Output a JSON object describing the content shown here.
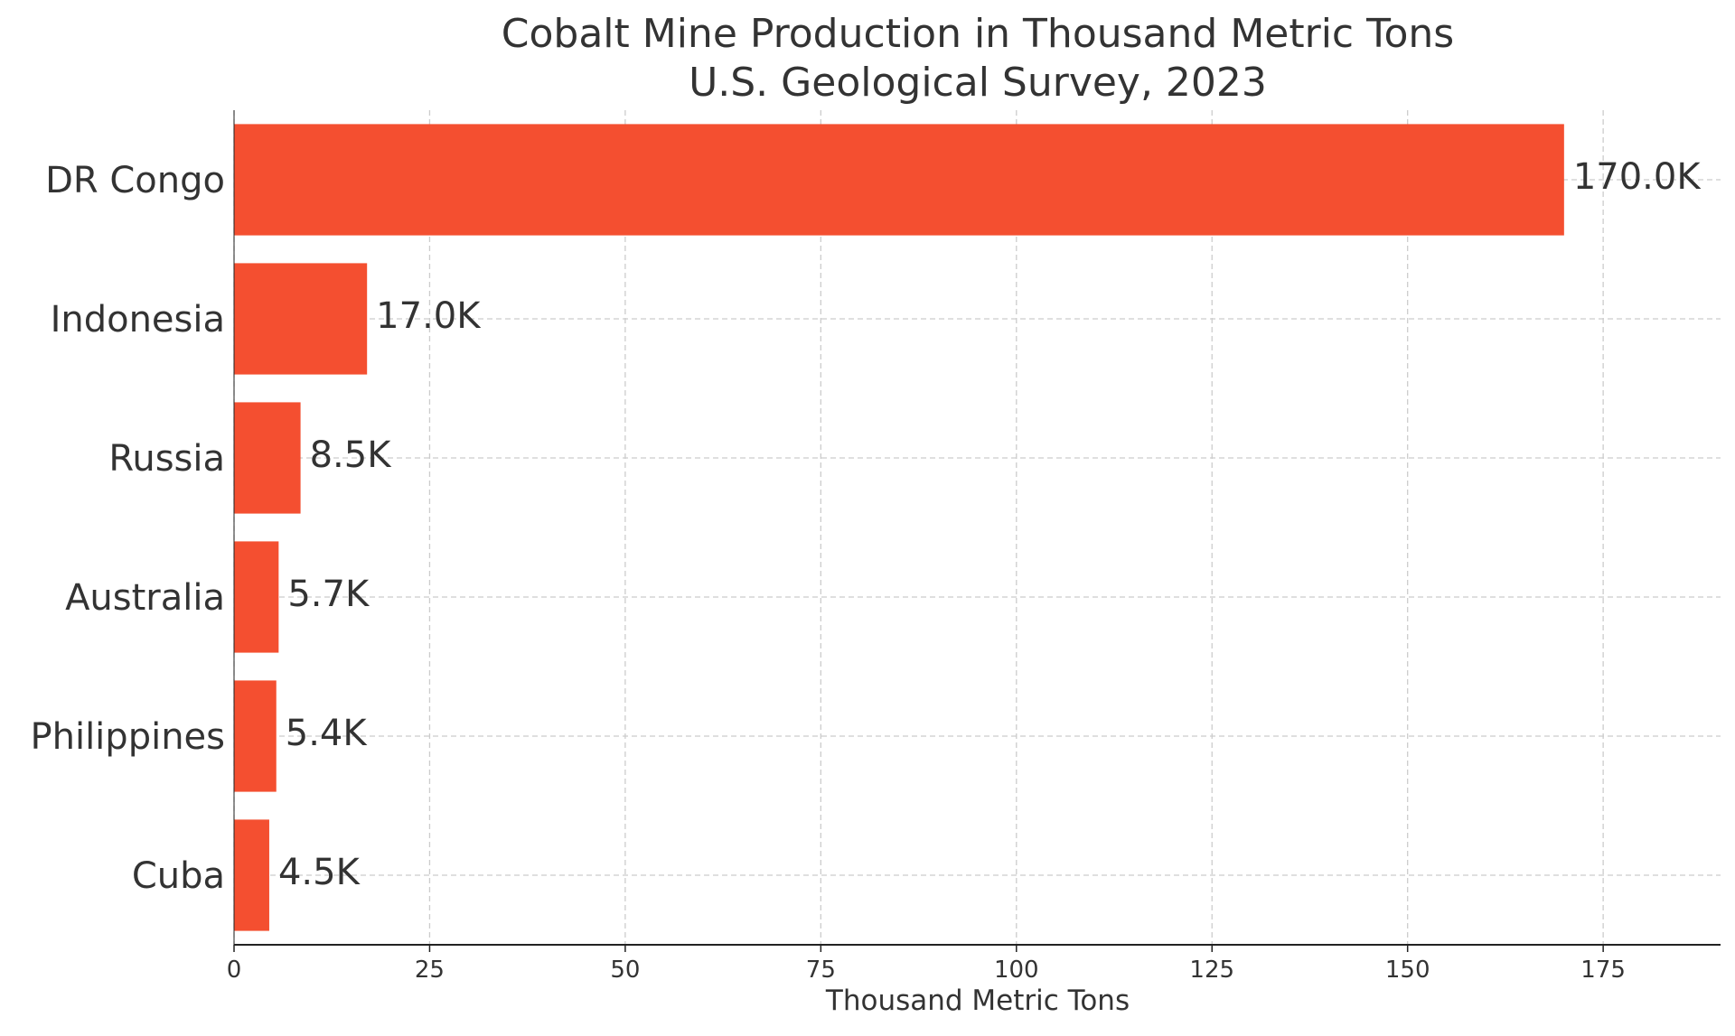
{
  "chart_data": {
    "type": "bar",
    "orientation": "horizontal",
    "title": "Cobalt Mine Production in Thousand Metric Tons",
    "subtitle": "U.S. Geological Survey, 2023",
    "xlabel": "Thousand Metric Tons",
    "ylabel": "",
    "categories": [
      "DR Congo",
      "Indonesia",
      "Russia",
      "Australia",
      "Philippines",
      "Cuba"
    ],
    "values": [
      170.0,
      17.0,
      8.5,
      5.7,
      5.4,
      4.5
    ],
    "data_labels": [
      "170.0K",
      "17.0K",
      "8.5K",
      "5.7K",
      "5.4K",
      "4.5K"
    ],
    "xlim": [
      0,
      190
    ],
    "xticks": [
      0,
      25,
      50,
      75,
      100,
      125,
      150,
      175
    ],
    "xtick_labels": [
      "0",
      "25",
      "50",
      "75",
      "100",
      "125",
      "150",
      "175"
    ],
    "grid": true,
    "grid_style": "dashed",
    "bar_color": "#f44f30",
    "text_color": "#333333",
    "grid_color": "#cccccc"
  }
}
